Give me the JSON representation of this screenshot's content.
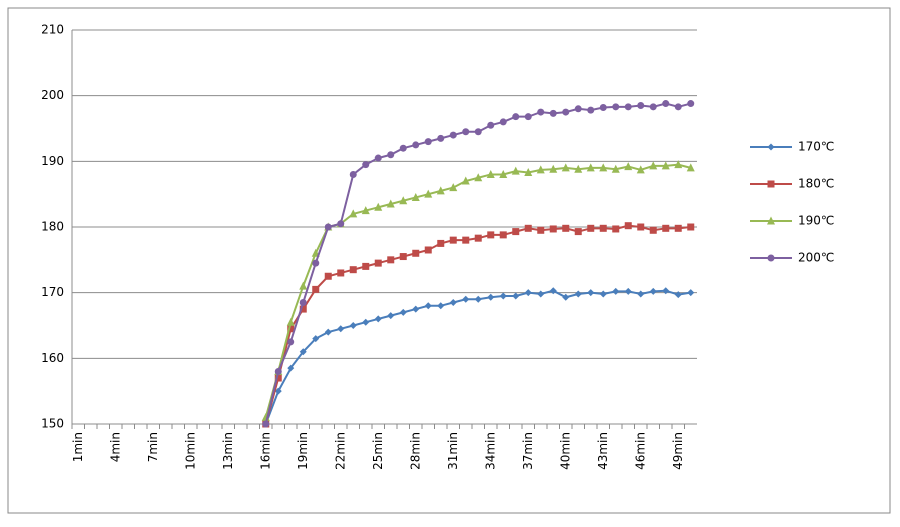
{
  "chart_data": {
    "type": "line",
    "categories": [
      "1min",
      null,
      null,
      "4min",
      null,
      null,
      "7min",
      null,
      null,
      "10min",
      null,
      null,
      "13min",
      null,
      null,
      "16min",
      null,
      null,
      "19min",
      null,
      null,
      "22min",
      null,
      null,
      "25min",
      null,
      null,
      "28min",
      null,
      null,
      "31min",
      null,
      null,
      "34min",
      null,
      null,
      "37min",
      null,
      null,
      "40min",
      null,
      null,
      "43min",
      null,
      null,
      "46min",
      null,
      null,
      "49min",
      null
    ],
    "series": [
      {
        "name": "170℃",
        "color": "#4a7ebb",
        "marker": "diamond",
        "values": [
          null,
          null,
          null,
          null,
          null,
          null,
          null,
          null,
          null,
          null,
          null,
          null,
          null,
          null,
          null,
          150,
          155,
          158.5,
          161,
          163,
          164,
          164.5,
          165,
          165.5,
          166,
          166.5,
          167,
          167.5,
          168,
          168,
          168.5,
          169,
          169,
          169.3,
          169.5,
          169.5,
          170,
          169.8,
          170.3,
          169.3,
          169.8,
          170,
          169.8,
          170.2,
          170.2,
          169.8,
          170.2,
          170.3,
          169.7,
          170
        ]
      },
      {
        "name": "180℃",
        "color": "#be4b48",
        "marker": "square",
        "values": [
          null,
          null,
          null,
          null,
          null,
          null,
          null,
          null,
          null,
          null,
          null,
          null,
          null,
          null,
          null,
          150,
          157,
          164.5,
          167.5,
          170.5,
          172.5,
          173,
          173.5,
          174,
          174.5,
          175,
          175.5,
          176,
          176.5,
          177.5,
          178,
          178,
          178.3,
          178.8,
          178.8,
          179.3,
          179.8,
          179.5,
          179.7,
          179.8,
          179.3,
          179.8,
          179.8,
          179.7,
          180.2,
          180,
          179.5,
          179.8,
          179.8,
          180
        ]
      },
      {
        "name": "190℃",
        "color": "#98b954",
        "marker": "triangle",
        "values": [
          null,
          null,
          null,
          null,
          null,
          null,
          null,
          null,
          null,
          null,
          null,
          null,
          null,
          null,
          null,
          151,
          158,
          165.5,
          171,
          176,
          180,
          180.5,
          182,
          182.5,
          183,
          183.5,
          184,
          184.5,
          185,
          185.5,
          186,
          187,
          187.5,
          188,
          188,
          188.5,
          188.3,
          188.7,
          188.8,
          189,
          188.8,
          189,
          189,
          188.8,
          189.2,
          188.7,
          189.3,
          189.3,
          189.5,
          189
        ]
      },
      {
        "name": "200℃",
        "color": "#7d60a0",
        "marker": "circle",
        "values": [
          null,
          null,
          null,
          null,
          null,
          null,
          null,
          null,
          null,
          null,
          null,
          null,
          null,
          null,
          null,
          150,
          158,
          162.5,
          168.5,
          174.5,
          180,
          180.5,
          188,
          189.5,
          190.5,
          191,
          192,
          192.5,
          193,
          193.5,
          194,
          194.5,
          194.5,
          195.5,
          196,
          196.8,
          196.8,
          197.5,
          197.3,
          197.5,
          198,
          197.8,
          198.2,
          198.3,
          198.3,
          198.5,
          198.3,
          198.8,
          198.3,
          198.8
        ]
      }
    ],
    "ylim": [
      150,
      210
    ],
    "yticks": [
      150,
      160,
      170,
      180,
      190,
      200,
      210
    ],
    "grid": true,
    "legend": "right"
  }
}
